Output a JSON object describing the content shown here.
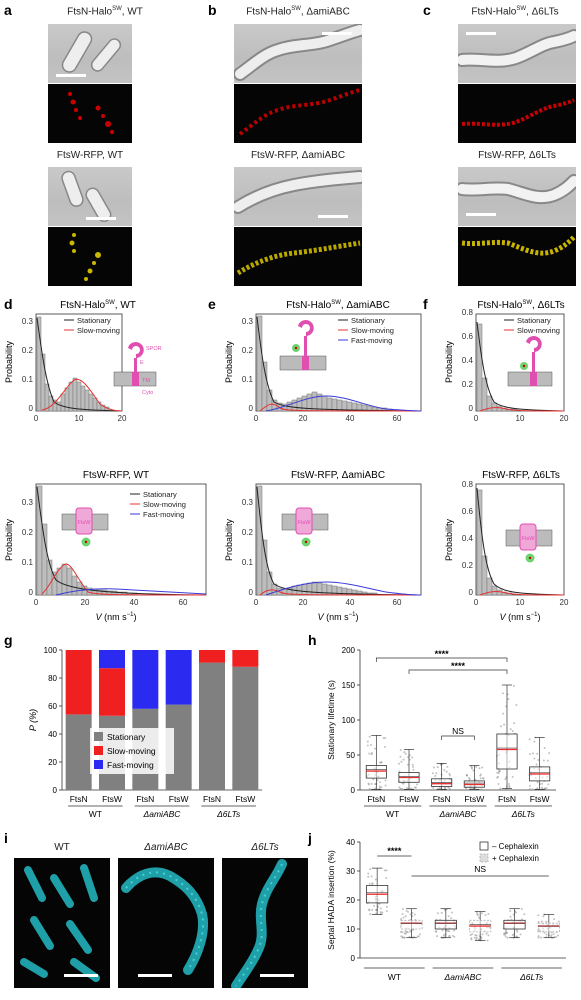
{
  "panel_letters": {
    "a": "a",
    "b": "b",
    "c": "c",
    "d": "d",
    "e": "e",
    "f": "f",
    "g": "g",
    "h": "h",
    "i": "i",
    "j": "j"
  },
  "micrographs": {
    "a_top": "FtsN-Halo",
    "a_top_sup": "SW",
    "a_top_suffix": ", WT",
    "a_bottom": "FtsW-RFP, WT",
    "b_top": "FtsN-Halo",
    "b_top_sup": "SW",
    "b_top_suffix": ", ΔamiABC",
    "b_bottom": "FtsW-RFP, ΔamiABC",
    "c_top": "FtsN-Halo",
    "c_top_sup": "SW",
    "c_top_suffix": ", Δ6LTs",
    "c_bottom": "FtsW-RFP, Δ6LTs",
    "i_wt": "WT",
    "i_ami": "ΔamiABC",
    "i_6lt": "Δ6LTs"
  },
  "histograms": {
    "d_top_title": "FtsN-HaloSW, WT",
    "e_top_title": "FtsN-HaloSW, ΔamiABC",
    "f_top_title": "FtsN-HaloSW, Δ6LTs",
    "d_bottom_title": "FtsW-RFP, WT",
    "e_bottom_title": "FtsW-RFP, ΔamiABC",
    "f_bottom_title": "FtsW-RFP, Δ6LTs",
    "ylabel": "Probability",
    "xlabel": "V (nm s⁻¹)",
    "legend_stationary": "Stationary",
    "legend_slow": "Slow-moving",
    "legend_fast": "Fast-moving",
    "schematic_labels": {
      "spor": "SPOR",
      "e": "E",
      "tm": "TM",
      "cyto": "Cyto",
      "ftsw": "FtsW"
    },
    "colors": {
      "stationary": "#222222",
      "slow": "#e83030",
      "fast": "#3a3ad8",
      "bar": "#bdbdbd",
      "pink": "#e04fb0"
    }
  },
  "panel_g": {
    "ylabel": "P (%)",
    "yticks": [
      "0",
      "20",
      "40",
      "60",
      "80",
      "100"
    ],
    "bars": [
      "FtsN",
      "FtsW",
      "FtsN",
      "FtsW",
      "FtsN",
      "FtsW"
    ],
    "groups": [
      "WT",
      "ΔamiABC",
      "Δ6LTs"
    ],
    "legend": [
      "Stationary",
      "Slow-moving",
      "Fast-moving"
    ],
    "colors": {
      "stationary": "#808080",
      "slow": "#f02020",
      "fast": "#2a2af0"
    }
  },
  "panel_h": {
    "ylabel": "Stationary lifetime (s)",
    "yticks": [
      "0",
      "50",
      "100",
      "150",
      "200"
    ],
    "bars": [
      "FtsN",
      "FtsW",
      "FtsN",
      "FtsW",
      "FtsN",
      "FtsW"
    ],
    "groups": [
      "WT",
      "ΔamiABC",
      "Δ6LTs"
    ],
    "sig1": "****",
    "sig2": "****",
    "ns": "NS"
  },
  "panel_j": {
    "ylabel": "Septal HADA insertion (%)",
    "yticks": [
      "0",
      "10",
      "20",
      "30",
      "40"
    ],
    "groups": [
      "WT",
      "ΔamiABC",
      "Δ6LTs"
    ],
    "legend_minus": "– Cephalexin",
    "legend_plus": "+ Cephalexin",
    "sig": "****",
    "ns": "NS"
  },
  "chart_data": [
    {
      "type": "bar",
      "id": "g",
      "stacked": true,
      "categories": [
        "FtsN WT",
        "FtsW WT",
        "FtsN ΔamiABC",
        "FtsW ΔamiABC",
        "FtsN Δ6LTs",
        "FtsW Δ6LTs"
      ],
      "series": [
        {
          "name": "Stationary",
          "values": [
            54,
            53,
            58,
            61,
            91,
            88
          ]
        },
        {
          "name": "Slow-moving",
          "values": [
            46,
            34,
            0,
            0,
            9,
            12
          ]
        },
        {
          "name": "Fast-moving",
          "values": [
            0,
            13,
            42,
            39,
            0,
            0
          ]
        }
      ],
      "ylabel": "P (%)",
      "ylim": [
        0,
        100
      ]
    },
    {
      "type": "box",
      "id": "h",
      "categories": [
        "FtsN WT",
        "FtsW WT",
        "FtsN ΔamiABC",
        "FtsW ΔamiABC",
        "FtsN Δ6LTs",
        "FtsW Δ6LTs"
      ],
      "q1": [
        17,
        11,
        5,
        4,
        30,
        13
      ],
      "median": [
        27,
        18,
        9,
        8,
        58,
        23
      ],
      "q3": [
        35,
        25,
        16,
        13,
        80,
        33
      ],
      "mean": [
        29,
        19,
        11,
        10,
        60,
        25
      ],
      "whisker_low": [
        1,
        1,
        1,
        1,
        2,
        1
      ],
      "whisker_high": [
        78,
        58,
        38,
        35,
        150,
        75
      ],
      "ylabel": "Stationary lifetime (s)",
      "ylim": [
        0,
        200
      ]
    },
    {
      "type": "box",
      "id": "j",
      "categories": [
        "WT – Cephalexin",
        "WT + Cephalexin",
        "ΔamiABC – Cephalexin",
        "ΔamiABC + Cephalexin",
        "Δ6LTs – Cephalexin",
        "Δ6LTs + Cephalexin"
      ],
      "q1": [
        19,
        10,
        10,
        9,
        10,
        9
      ],
      "median": [
        22,
        12,
        12,
        11,
        12,
        11
      ],
      "q3": [
        25,
        13,
        13,
        13,
        13,
        12
      ],
      "mean": [
        22.5,
        12,
        12,
        11.5,
        12,
        11
      ],
      "whisker_low": [
        15,
        7,
        7,
        6,
        7,
        7
      ],
      "whisker_high": [
        31,
        17,
        17,
        16,
        17,
        15
      ],
      "ylabel": "Septal HADA insertion (%)",
      "ylim": [
        0,
        40
      ]
    }
  ]
}
